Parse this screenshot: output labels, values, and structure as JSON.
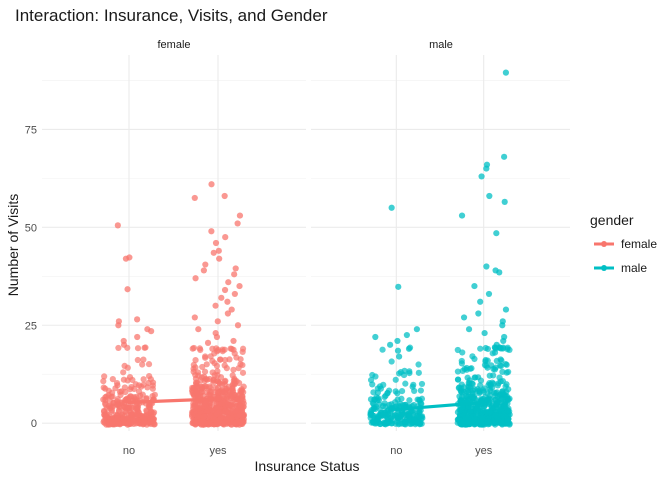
{
  "chart_data": {
    "type": "scatter",
    "title": "Interaction: Insurance, Visits, and Gender",
    "xlabel": "Insurance Status",
    "ylabel": "Number of Visits",
    "categories": [
      "no",
      "yes"
    ],
    "panels": [
      "female",
      "male"
    ],
    "ylim": [
      -2,
      94
    ],
    "yticks": [
      0,
      25,
      50,
      75
    ],
    "grid": true,
    "legend": {
      "title": "gender",
      "position": "right",
      "entries": [
        {
          "name": "female",
          "color": "#F8766D"
        },
        {
          "name": "male",
          "color": "#00BFC4"
        }
      ]
    },
    "series": [
      {
        "name": "female",
        "color": "#F8766D",
        "means": [
          {
            "x": "no",
            "y": 5.3
          },
          {
            "x": "yes",
            "y": 6.2
          }
        ],
        "points": [
          {
            "x": "no",
            "y": 50.5
          },
          {
            "x": "no",
            "y": 42.0
          },
          {
            "x": "no",
            "y": 42.3
          },
          {
            "x": "no",
            "y": 34.2
          },
          {
            "x": "no",
            "y": 26.5
          },
          {
            "x": "no",
            "y": 26.0
          },
          {
            "x": "no",
            "y": 25.0
          },
          {
            "x": "no",
            "y": 24.0
          },
          {
            "x": "no",
            "y": 23.5
          },
          {
            "x": "no",
            "y": 22.0
          },
          {
            "x": "no",
            "y": 21.0
          },
          {
            "x": "no",
            "y": 20.0
          },
          {
            "x": "yes",
            "y": 61.0
          },
          {
            "x": "yes",
            "y": 58.0
          },
          {
            "x": "yes",
            "y": 57.5
          },
          {
            "x": "yes",
            "y": 53.0
          },
          {
            "x": "yes",
            "y": 51.0
          },
          {
            "x": "yes",
            "y": 49.0
          },
          {
            "x": "yes",
            "y": 47.5
          },
          {
            "x": "yes",
            "y": 46.0
          },
          {
            "x": "yes",
            "y": 44.0
          },
          {
            "x": "yes",
            "y": 43.5
          },
          {
            "x": "yes",
            "y": 42.0
          },
          {
            "x": "yes",
            "y": 40.5
          },
          {
            "x": "yes",
            "y": 39.5
          },
          {
            "x": "yes",
            "y": 39.0
          },
          {
            "x": "yes",
            "y": 38.0
          },
          {
            "x": "yes",
            "y": 37.0
          },
          {
            "x": "yes",
            "y": 36.0
          },
          {
            "x": "yes",
            "y": 35.0
          },
          {
            "x": "yes",
            "y": 34.0
          },
          {
            "x": "yes",
            "y": 33.0
          },
          {
            "x": "yes",
            "y": 32.0
          },
          {
            "x": "yes",
            "y": 31.0
          },
          {
            "x": "yes",
            "y": 30.0
          },
          {
            "x": "yes",
            "y": 29.0
          },
          {
            "x": "yes",
            "y": 28.0
          },
          {
            "x": "yes",
            "y": 27.0
          },
          {
            "x": "yes",
            "y": 26.0
          },
          {
            "x": "yes",
            "y": 25.0
          },
          {
            "x": "yes",
            "y": 24.0
          },
          {
            "x": "yes",
            "y": 23.0
          },
          {
            "x": "yes",
            "y": 22.0
          },
          {
            "x": "yes",
            "y": 21.0
          },
          {
            "x": "yes",
            "y": 20.5
          }
        ]
      },
      {
        "name": "male",
        "color": "#00BFC4",
        "means": [
          {
            "x": "no",
            "y": 3.5
          },
          {
            "x": "yes",
            "y": 5.3
          }
        ],
        "points": [
          {
            "x": "no",
            "y": 55.0
          },
          {
            "x": "no",
            "y": 34.8
          },
          {
            "x": "no",
            "y": 24.0
          },
          {
            "x": "no",
            "y": 22.5
          },
          {
            "x": "no",
            "y": 22.0
          },
          {
            "x": "no",
            "y": 21.0
          },
          {
            "x": "no",
            "y": 20.0
          },
          {
            "x": "no",
            "y": 19.0
          },
          {
            "x": "no",
            "y": 18.5
          },
          {
            "x": "no",
            "y": 17.0
          },
          {
            "x": "yes",
            "y": 89.5
          },
          {
            "x": "yes",
            "y": 68.0
          },
          {
            "x": "yes",
            "y": 66.0
          },
          {
            "x": "yes",
            "y": 65.0
          },
          {
            "x": "yes",
            "y": 63.0
          },
          {
            "x": "yes",
            "y": 58.0
          },
          {
            "x": "yes",
            "y": 56.5
          },
          {
            "x": "yes",
            "y": 53.0
          },
          {
            "x": "yes",
            "y": 48.5
          },
          {
            "x": "yes",
            "y": 40.0
          },
          {
            "x": "yes",
            "y": 39.0
          },
          {
            "x": "yes",
            "y": 38.5
          },
          {
            "x": "yes",
            "y": 35.0
          },
          {
            "x": "yes",
            "y": 33.0
          },
          {
            "x": "yes",
            "y": 31.0
          },
          {
            "x": "yes",
            "y": 29.0
          },
          {
            "x": "yes",
            "y": 28.0
          },
          {
            "x": "yes",
            "y": 27.0
          },
          {
            "x": "yes",
            "y": 26.0
          },
          {
            "x": "yes",
            "y": 25.0
          },
          {
            "x": "yes",
            "y": 24.0
          },
          {
            "x": "yes",
            "y": 23.0
          },
          {
            "x": "yes",
            "y": 22.0
          },
          {
            "x": "yes",
            "y": 21.0
          },
          {
            "x": "yes",
            "y": 20.0
          }
        ]
      }
    ]
  }
}
